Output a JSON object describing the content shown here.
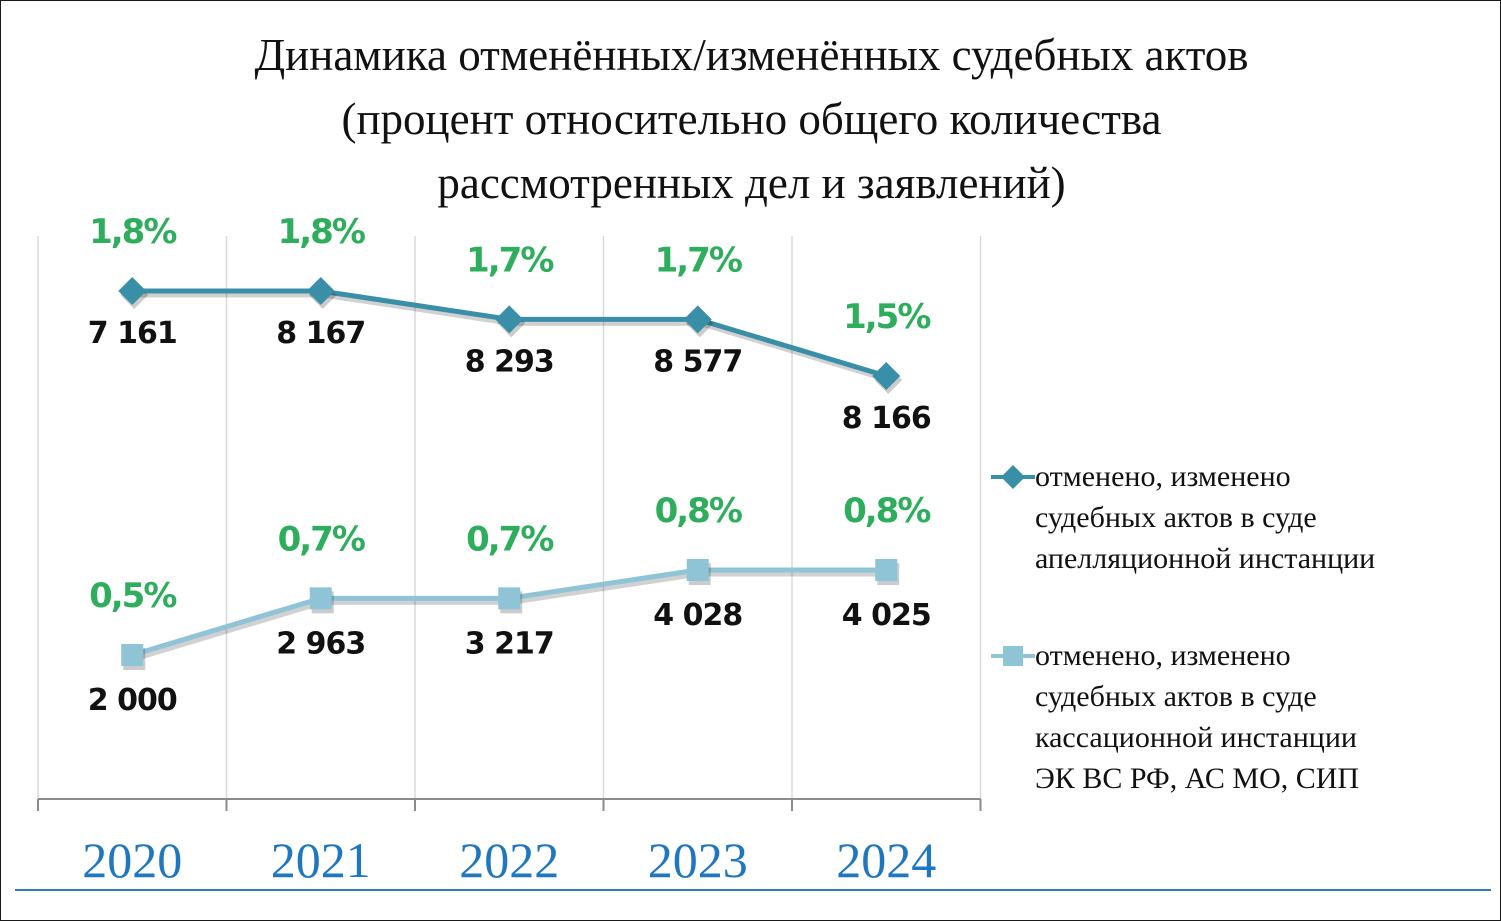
{
  "title_lines": [
    "Динамика отменённых/изменённых судебных актов",
    "(процент относительно общего количества",
    "рассмотренных дел и заявлений)"
  ],
  "chart_data": {
    "type": "line",
    "categories": [
      "2020",
      "2021",
      "2022",
      "2023",
      "2024"
    ],
    "series": [
      {
        "name_lines": [
          "отменено, изменено",
          "судебных актов в суде",
          "апелляционной инстанции"
        ],
        "marker": "diamond",
        "color": "#3a8fa8",
        "values": [
          7161,
          8167,
          8293,
          8577,
          8166
        ],
        "value_labels": [
          "7 161",
          "8 167",
          "8 293",
          "8 577",
          "8 166"
        ],
        "percent_labels": [
          "1,8%",
          "1,8%",
          "1,7%",
          "1,7%",
          "1,5%"
        ],
        "percent": [
          1.8,
          1.8,
          1.7,
          1.7,
          1.5
        ]
      },
      {
        "name_lines": [
          "отменено, изменено",
          "судебных актов в суде",
          "кассационной инстанции",
          "ЭК ВС РФ, АС МО, СИП"
        ],
        "marker": "square",
        "color": "#8ec4d6",
        "values": [
          2000,
          2963,
          3217,
          4028,
          4025
        ],
        "value_labels": [
          "2 000",
          "2 963",
          "3 217",
          "4 028",
          "4 025"
        ],
        "percent_labels": [
          "0,5%",
          "0,7%",
          "0,7%",
          "0,8%",
          "0,8%"
        ],
        "percent": [
          0.5,
          0.7,
          0.7,
          0.8,
          0.8
        ]
      }
    ],
    "percent_label_color": "#2eae5c",
    "year_label_color": "#1f77c0",
    "grid": "vertical",
    "legend_position": "right"
  }
}
